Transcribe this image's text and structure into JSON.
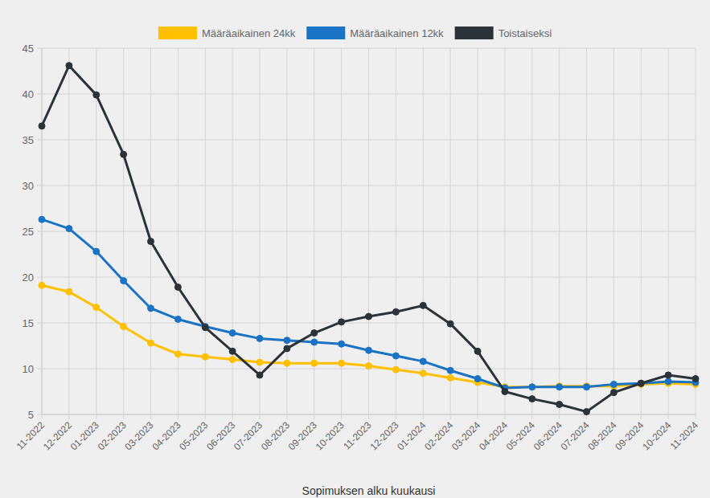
{
  "chart_data": {
    "type": "line",
    "x_label": "Sopimuksen alku kuukausi",
    "categories": [
      "11-2022",
      "12-2022",
      "01-2023",
      "02-2023",
      "03-2023",
      "04-2023",
      "05-2023",
      "06-2023",
      "07-2023",
      "08-2023",
      "09-2023",
      "10-2023",
      "11-2023",
      "12-2023",
      "01-2024",
      "02-2024",
      "03-2024",
      "04-2024",
      "05-2024",
      "06-2024",
      "07-2024",
      "08-2024",
      "09-2024",
      "10-2024",
      "11-2024"
    ],
    "series": [
      {
        "name": "Määräaikainen 24kk",
        "color": "#ffc000",
        "marker": "circle",
        "values": [
          19.1,
          18.4,
          16.7,
          14.6,
          12.8,
          11.6,
          11.3,
          11.0,
          10.7,
          10.6,
          10.6,
          10.6,
          10.3,
          9.9,
          9.5,
          9.0,
          8.5,
          8.0,
          8.0,
          8.1,
          8.1,
          8.1,
          8.3,
          8.4,
          8.3
        ]
      },
      {
        "name": "Määräaikainen 12kk",
        "color": "#1a73c4",
        "marker": "circle",
        "values": [
          26.3,
          25.3,
          22.8,
          19.6,
          16.6,
          15.4,
          14.6,
          13.9,
          13.3,
          13.1,
          12.9,
          12.7,
          12.0,
          11.4,
          10.8,
          9.8,
          8.9,
          7.9,
          8.0,
          8.0,
          8.0,
          8.3,
          8.4,
          8.6,
          8.5
        ]
      },
      {
        "name": "Toistaiseksi",
        "color": "#2b3338",
        "marker": "circle",
        "values": [
          36.5,
          43.1,
          39.9,
          33.4,
          23.9,
          18.9,
          14.5,
          11.9,
          9.3,
          12.2,
          13.9,
          15.1,
          15.7,
          16.2,
          16.9,
          14.9,
          11.9,
          7.5,
          6.7,
          6.1,
          5.3,
          7.4,
          8.4,
          9.3,
          8.9
        ]
      }
    ],
    "ylim": [
      5,
      45
    ],
    "yticks": [
      5,
      10,
      15,
      20,
      25,
      30,
      35,
      40,
      45
    ],
    "grid": true,
    "legend": "top"
  }
}
